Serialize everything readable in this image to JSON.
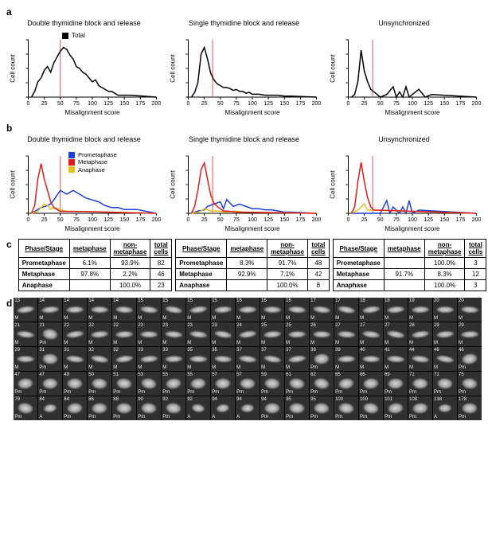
{
  "panels": {
    "a": "a",
    "b": "b",
    "c": "c",
    "d": "d"
  },
  "axis": {
    "x": "Misalignment score",
    "y": "Cell count"
  },
  "titles": [
    "Double thymidine block and release",
    "Single thymidine block and release",
    "Unsynchronized"
  ],
  "legendA": {
    "name": "Total",
    "box_color": "#000000"
  },
  "legendB": {
    "prometaphase": {
      "label": "Prometaphase",
      "color": "#1c3fd7"
    },
    "metaphase": {
      "label": "Metaphase",
      "color": "#e01b1b"
    },
    "anaphase": {
      "label": "Anaphase",
      "color": "#e6c01b"
    }
  },
  "x_ticks": [
    0,
    25,
    50,
    75,
    100,
    125,
    150,
    175,
    200
  ],
  "xlim": [
    0,
    200
  ],
  "threshold_x": [
    50,
    38,
    38
  ],
  "a": {
    "y_max": [
      30,
      60,
      22
    ],
    "series": [
      {
        "x": [
          5,
          10,
          15,
          20,
          25,
          30,
          35,
          40,
          45,
          50,
          55,
          60,
          65,
          70,
          75,
          80,
          85,
          90,
          95,
          100,
          105,
          110,
          115,
          120,
          125,
          130,
          135,
          140,
          150,
          160,
          200
        ],
        "y": [
          0,
          3,
          8,
          10,
          14,
          16,
          13,
          18,
          21,
          24,
          26,
          25,
          22,
          20,
          16,
          15,
          13,
          12,
          10,
          8,
          9,
          6,
          5,
          4,
          3,
          3,
          2,
          1,
          1,
          1,
          0
        ]
      },
      {
        "x": [
          5,
          10,
          15,
          20,
          25,
          30,
          35,
          40,
          45,
          50,
          55,
          60,
          65,
          70,
          75,
          80,
          85,
          90,
          95,
          100,
          110,
          120,
          130,
          140,
          150,
          160,
          200
        ],
        "y": [
          0,
          5,
          15,
          45,
          52,
          40,
          25,
          18,
          14,
          12,
          10,
          10,
          9,
          7,
          8,
          6,
          6,
          4,
          5,
          3,
          3,
          2,
          2,
          2,
          1,
          1,
          0
        ]
      },
      {
        "x": [
          5,
          10,
          15,
          20,
          25,
          30,
          35,
          40,
          45,
          50,
          60,
          70,
          75,
          80,
          85,
          90,
          95,
          100,
          110,
          120,
          130,
          200
        ],
        "y": [
          0,
          1,
          6,
          18,
          10,
          6,
          3,
          2,
          1,
          0,
          1,
          4,
          0,
          2,
          0,
          4,
          0,
          1,
          3,
          0,
          1,
          0
        ]
      }
    ]
  },
  "b": {
    "y_max": [
      30,
      50,
      18
    ],
    "prometaphase": [
      {
        "x": [
          5,
          10,
          20,
          30,
          35,
          40,
          50,
          60,
          70,
          80,
          90,
          100,
          110,
          120,
          130,
          140,
          150,
          170,
          200
        ],
        "y": [
          0,
          1,
          3,
          4,
          5,
          7,
          12,
          10,
          12,
          10,
          8,
          7,
          6,
          4,
          3,
          3,
          2,
          2,
          0
        ]
      },
      {
        "x": [
          5,
          15,
          25,
          30,
          40,
          50,
          55,
          60,
          70,
          80,
          90,
          100,
          110,
          120,
          130,
          140,
          150,
          160,
          200
        ],
        "y": [
          0,
          2,
          3,
          6,
          8,
          10,
          4,
          12,
          6,
          8,
          6,
          4,
          4,
          3,
          3,
          2,
          1,
          1,
          0
        ]
      },
      {
        "x": [
          5,
          20,
          50,
          60,
          65,
          70,
          80,
          85,
          90,
          95,
          100,
          110,
          200
        ],
        "y": [
          0,
          0,
          0,
          4,
          0,
          2,
          0,
          2,
          0,
          4,
          0,
          1,
          0
        ]
      }
    ],
    "metaphase": [
      {
        "x": [
          5,
          10,
          15,
          20,
          25,
          30,
          35,
          40,
          45,
          50,
          60,
          75,
          200
        ],
        "y": [
          0,
          4,
          18,
          26,
          18,
          12,
          6,
          3,
          2,
          1,
          1,
          1,
          0
        ]
      },
      {
        "x": [
          5,
          10,
          15,
          20,
          25,
          30,
          35,
          40,
          45,
          50,
          55,
          60,
          75,
          200
        ],
        "y": [
          0,
          6,
          20,
          38,
          44,
          30,
          16,
          9,
          6,
          4,
          2,
          2,
          1,
          0
        ]
      },
      {
        "x": [
          5,
          10,
          15,
          20,
          25,
          30,
          35,
          40,
          45,
          200
        ],
        "y": [
          0,
          2,
          10,
          16,
          10,
          5,
          2,
          1,
          1,
          0
        ]
      }
    ],
    "anaphase": [
      {
        "x": [
          5,
          15,
          20,
          25,
          30,
          35,
          40,
          50,
          60,
          80,
          200
        ],
        "y": [
          0,
          1,
          3,
          5,
          4,
          2,
          3,
          2,
          1,
          1,
          0
        ]
      },
      {
        "x": [
          5,
          15,
          20,
          25,
          30,
          35,
          45,
          60,
          70,
          90,
          200
        ],
        "y": [
          0,
          1,
          2,
          4,
          3,
          2,
          2,
          1,
          2,
          1,
          0
        ]
      },
      {
        "x": [
          5,
          15,
          20,
          25,
          30,
          35,
          200
        ],
        "y": [
          0,
          1,
          2,
          3,
          1,
          1,
          0
        ]
      }
    ]
  },
  "tablesHeader": [
    "Phase/Stage",
    "metaphase",
    "non-metaphase",
    "total cells"
  ],
  "tables": [
    {
      "rows": [
        [
          "Prometaphase",
          "6.1%",
          "93.9%",
          "82"
        ],
        [
          "Metaphase",
          "97.8%",
          "2.2%",
          "46"
        ],
        [
          "Anaphase",
          "",
          "100.0%",
          "23"
        ]
      ]
    },
    {
      "rows": [
        [
          "Prometaphase",
          "8.3%",
          "91.7%",
          "48"
        ],
        [
          "Metaphase",
          "92.9%",
          "7.1%",
          "42"
        ],
        [
          "Anaphase",
          "",
          "100.0%",
          "8"
        ]
      ]
    },
    {
      "rows": [
        [
          "Prometaphase",
          "",
          "100.0%",
          "3"
        ],
        [
          "Metaphase",
          "91.7%",
          "8.3%",
          "12"
        ],
        [
          "Anaphase",
          "",
          "100.0%",
          "3"
        ]
      ]
    }
  ],
  "d": {
    "cols": 19,
    "rows": 5,
    "cells": [
      {
        "n": "13",
        "p": "M"
      },
      {
        "n": "14",
        "p": "M"
      },
      {
        "n": "14",
        "p": "M"
      },
      {
        "n": "14",
        "p": "M"
      },
      {
        "n": "14",
        "p": "M"
      },
      {
        "n": "15",
        "p": "M"
      },
      {
        "n": "15",
        "p": "M"
      },
      {
        "n": "15",
        "p": "M"
      },
      {
        "n": "15",
        "p": "M"
      },
      {
        "n": "16",
        "p": "M"
      },
      {
        "n": "16",
        "p": "M"
      },
      {
        "n": "16",
        "p": "M"
      },
      {
        "n": "17",
        "p": "M"
      },
      {
        "n": "17",
        "p": "M"
      },
      {
        "n": "18",
        "p": "M"
      },
      {
        "n": "18",
        "p": "M"
      },
      {
        "n": "19",
        "p": "M"
      },
      {
        "n": "20",
        "p": "M"
      },
      {
        "n": "20",
        "p": "M"
      },
      {
        "n": "21",
        "p": "M"
      },
      {
        "n": "21",
        "p": "Pm"
      },
      {
        "n": "22",
        "p": "M"
      },
      {
        "n": "22",
        "p": "M"
      },
      {
        "n": "22",
        "p": "M"
      },
      {
        "n": "23",
        "p": "M"
      },
      {
        "n": "23",
        "p": "M"
      },
      {
        "n": "23",
        "p": "M"
      },
      {
        "n": "23",
        "p": "M"
      },
      {
        "n": "24",
        "p": "M"
      },
      {
        "n": "25",
        "p": "M"
      },
      {
        "n": "25",
        "p": "M"
      },
      {
        "n": "26",
        "p": "M"
      },
      {
        "n": "27",
        "p": "M"
      },
      {
        "n": "27",
        "p": "M"
      },
      {
        "n": "27",
        "p": "M"
      },
      {
        "n": "28",
        "p": "M"
      },
      {
        "n": "29",
        "p": "M"
      },
      {
        "n": "29",
        "p": "M"
      },
      {
        "n": "29",
        "p": "M"
      },
      {
        "n": "31",
        "p": "Pm"
      },
      {
        "n": "31",
        "p": "M"
      },
      {
        "n": "32",
        "p": "M"
      },
      {
        "n": "32",
        "p": "M"
      },
      {
        "n": "33",
        "p": "M"
      },
      {
        "n": "33",
        "p": "M"
      },
      {
        "n": "35",
        "p": "M"
      },
      {
        "n": "35",
        "p": "M"
      },
      {
        "n": "37",
        "p": "M"
      },
      {
        "n": "37",
        "p": "M"
      },
      {
        "n": "37",
        "p": "M"
      },
      {
        "n": "38",
        "p": "Pm"
      },
      {
        "n": "39",
        "p": "M"
      },
      {
        "n": "40",
        "p": "M"
      },
      {
        "n": "41",
        "p": "M"
      },
      {
        "n": "44",
        "p": "M"
      },
      {
        "n": "46",
        "p": "M"
      },
      {
        "n": "46",
        "p": "Pm"
      },
      {
        "n": "47",
        "p": "Pm"
      },
      {
        "n": "47",
        "p": "Pm"
      },
      {
        "n": "49",
        "p": "Pm"
      },
      {
        "n": "50",
        "p": "Pm"
      },
      {
        "n": "51",
        "p": "Pm"
      },
      {
        "n": "53",
        "p": "Pm"
      },
      {
        "n": "55",
        "p": "Pm"
      },
      {
        "n": "55",
        "p": "Pm"
      },
      {
        "n": "57",
        "p": "Pm"
      },
      {
        "n": "57",
        "p": "Pm"
      },
      {
        "n": "59",
        "p": "Pm"
      },
      {
        "n": "61",
        "p": "Pm"
      },
      {
        "n": "62",
        "p": "Pm"
      },
      {
        "n": "65",
        "p": "Pm"
      },
      {
        "n": "66",
        "p": "Pm"
      },
      {
        "n": "69",
        "p": "Pm"
      },
      {
        "n": "71",
        "p": "Pm"
      },
      {
        "n": "71",
        "p": "Pm"
      },
      {
        "n": "75",
        "p": "Pm"
      },
      {
        "n": "79",
        "p": "Pm"
      },
      {
        "n": "84",
        "p": "A"
      },
      {
        "n": "84",
        "p": "Pm"
      },
      {
        "n": "86",
        "p": "Pm"
      },
      {
        "n": "88",
        "p": "Pm"
      },
      {
        "n": "90",
        "p": "Pm"
      },
      {
        "n": "92",
        "p": "Pm"
      },
      {
        "n": "92",
        "p": "A"
      },
      {
        "n": "94",
        "p": "A"
      },
      {
        "n": "94",
        "p": "A"
      },
      {
        "n": "94",
        "p": "Pm"
      },
      {
        "n": "95",
        "p": "Pm"
      },
      {
        "n": "95",
        "p": "Pm"
      },
      {
        "n": "100",
        "p": "Pm"
      },
      {
        "n": "100",
        "p": "Pm"
      },
      {
        "n": "101",
        "p": "Pm"
      },
      {
        "n": "108",
        "p": "Pm"
      },
      {
        "n": "138",
        "p": "A"
      },
      {
        "n": "178",
        "p": "Pm"
      }
    ]
  },
  "colors": {
    "bg": "#ffffff",
    "thumb_bg": "#303030",
    "thumb_fg": "#d7d7d7"
  }
}
